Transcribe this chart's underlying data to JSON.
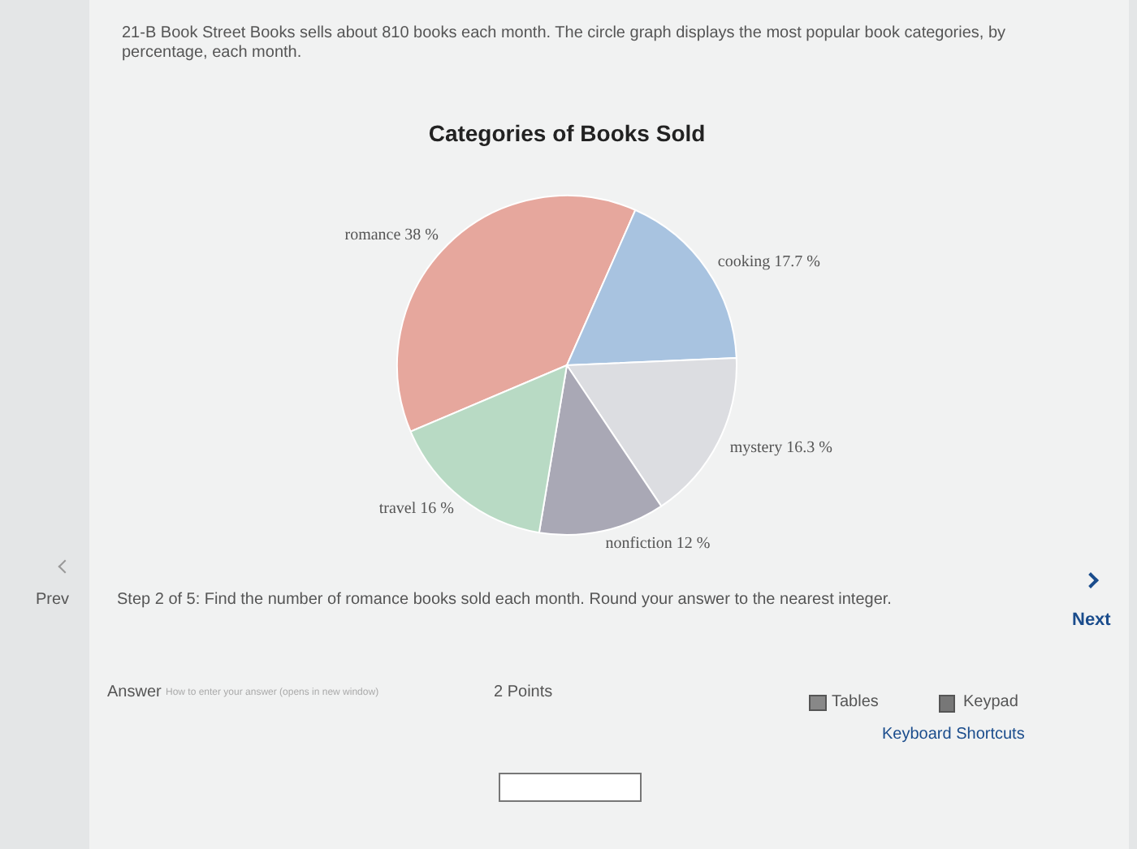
{
  "chart_data": {
    "type": "pie",
    "title": "Categories of Books Sold",
    "categories": [
      "romance",
      "cooking",
      "mystery",
      "nonfiction",
      "travel"
    ],
    "values": [
      38,
      17.7,
      16.3,
      12,
      16
    ],
    "value_labels": [
      "38 %",
      "17.7 %",
      "16.3 %",
      "12 %",
      "16 %"
    ],
    "colors": [
      "#e6a79d",
      "#a8c3e0",
      "#dcdde1",
      "#a9a8b5",
      "#b8dac4"
    ],
    "annotations": [
      "21-B Book Street Books sells about 810 books each month. The circle graph displays the most popular book categories, by percentage, each month.",
      "Prev",
      "Next",
      "Step 2 of 5: Find the number of romance books sold each month. Round your answer to the nearest integer.",
      "Answer",
      "How to enter your answer (opens in new window)",
      "2 Points",
      "Tables",
      "Keypad",
      "Keyboard Shortcuts"
    ]
  }
}
